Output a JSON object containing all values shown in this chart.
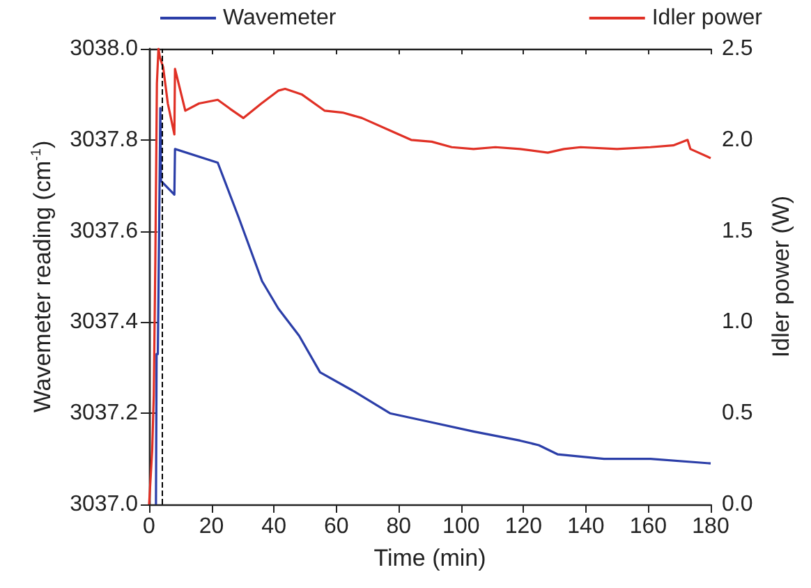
{
  "chart_data": {
    "type": "line",
    "xlabel": "Time (min)",
    "ylabel": "Wavemeter reading (cm$^{-1}$)",
    "y2label": "Idler power (W)",
    "xlim": [
      0,
      180
    ],
    "xticks": [
      0,
      20,
      40,
      60,
      80,
      100,
      120,
      140,
      160,
      180
    ],
    "ylim": [
      3037.0,
      3038.0
    ],
    "yticks": [
      {
        "value": 3037.0,
        "label": "3037.0"
      },
      {
        "value": 3037.2,
        "label": "3037.2"
      },
      {
        "value": 3037.4,
        "label": "3037.4"
      },
      {
        "value": 3037.6,
        "label": "3037.6"
      },
      {
        "value": 3037.8,
        "label": "3037.8"
      },
      {
        "value": 3038.0,
        "label": "3038.0"
      }
    ],
    "y2lim": [
      0,
      2.5
    ],
    "y2ticks": [
      {
        "value": 0,
        "label": "0.0"
      },
      {
        "value": 0.5,
        "label": "0.5"
      },
      {
        "value": 1.0,
        "label": "1.0"
      },
      {
        "value": 1.5,
        "label": "1.5"
      },
      {
        "value": 2.0,
        "label": "2.0"
      },
      {
        "value": 2.5,
        "label": "2.5"
      }
    ],
    "grid": false,
    "legend": "top",
    "marker": "none",
    "line_style": "solid",
    "ref_lines": [
      {
        "axis": "x",
        "value": 4,
        "label": null,
        "color": "#000000",
        "line_style": "dashed"
      }
    ],
    "series": [
      {
        "name": "Wavemeter",
        "color": "#2b3ea8",
        "x": [
          2.2,
          2.4,
          2.8,
          3.0,
          3.3,
          3.6,
          3.8,
          8.1,
          8.3,
          22,
          28.7,
          36.2,
          41.4,
          48.1,
          54.8,
          65.2,
          77.2,
          90.6,
          104,
          118.9,
          124.9,
          130.9,
          145.8,
          160.7,
          180
        ],
        "values": [
          3037.0,
          3037.33,
          3037.33,
          3037.46,
          3037.46,
          3037.87,
          3037.71,
          3037.68,
          3037.78,
          3037.75,
          3037.63,
          3037.49,
          3037.43,
          3037.37,
          3037.29,
          3037.25,
          3037.2,
          3037.18,
          3037.16,
          3037.14,
          3037.13,
          3037.11,
          3037.1,
          3037.1,
          3037.09
        ]
      },
      {
        "name": "Idler power",
        "color": "#e03025",
        "axis": "y2",
        "x": [
          0,
          1.0,
          1.5,
          2.0,
          2.5,
          3.0,
          3.5,
          4.5,
          6,
          8.1,
          8.3,
          11.6,
          16,
          22,
          26,
          30.2,
          36,
          41.4,
          43.6,
          48.9,
          56.3,
          62,
          68.2,
          78.7,
          84,
          90.6,
          97,
          104,
          111,
          118.9,
          127.8,
          133,
          138.3,
          150,
          160.7,
          168,
          172.6,
          173.5,
          180
        ],
        "values": [
          0.0,
          0.3,
          0.6,
          1.34,
          2.31,
          2.5,
          2.45,
          2.4,
          2.2,
          2.03,
          2.39,
          2.16,
          2.2,
          2.22,
          2.17,
          2.12,
          2.2,
          2.27,
          2.28,
          2.25,
          2.16,
          2.15,
          2.12,
          2.04,
          2.0,
          1.99,
          1.96,
          1.95,
          1.96,
          1.95,
          1.93,
          1.95,
          1.96,
          1.95,
          1.96,
          1.97,
          2.0,
          1.95,
          1.9
        ]
      }
    ]
  }
}
